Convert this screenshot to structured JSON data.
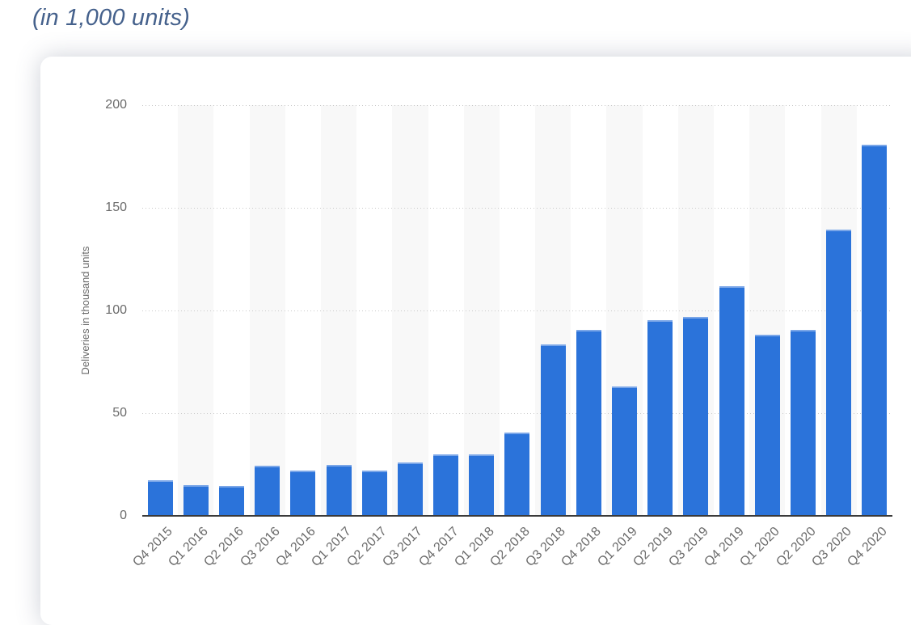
{
  "page": {
    "title": "(in 1,000 units)"
  },
  "theme": {
    "title_color": "#45618c",
    "axis_text_color": "#6b6b6b",
    "bar_color": "#2b73da",
    "bar_top_highlight": "#7aa6e8",
    "gridline_color": "#c9c9c9",
    "axis_line_color": "#3a3a3a",
    "stripe_color": "#f8f8f8",
    "card_background": "#ffffff"
  },
  "chart_data": {
    "type": "bar",
    "title": "(in 1,000 units)",
    "xlabel": "",
    "ylabel": "Deliveries in thousand units",
    "ylim": [
      0,
      200
    ],
    "yticks": [
      200,
      150,
      100,
      50,
      0
    ],
    "grid": "horizontal-dotted",
    "legend": "none",
    "x_label_rotation_deg": -45,
    "column_stripes": "alternating, stripe on every 2nd category starting with the 2nd",
    "categories": [
      "Q4 2015",
      "Q1 2016",
      "Q2 2016",
      "Q3 2016",
      "Q4 2016",
      "Q1 2017",
      "Q2 2017",
      "Q3 2017",
      "Q4 2017",
      "Q1 2018",
      "Q2 2018",
      "Q3 2018",
      "Q4 2018",
      "Q1 2019",
      "Q2 2019",
      "Q3 2019",
      "Q4 2019",
      "Q1 2020",
      "Q2 2020",
      "Q3 2020",
      "Q4 2020"
    ],
    "values": [
      17.4,
      14.8,
      14.4,
      24.5,
      22.2,
      25.0,
      22.0,
      26.2,
      29.9,
      30.0,
      40.7,
      83.5,
      90.7,
      63.0,
      95.2,
      97.0,
      112.0,
      88.4,
      90.7,
      139.3,
      180.6
    ]
  }
}
